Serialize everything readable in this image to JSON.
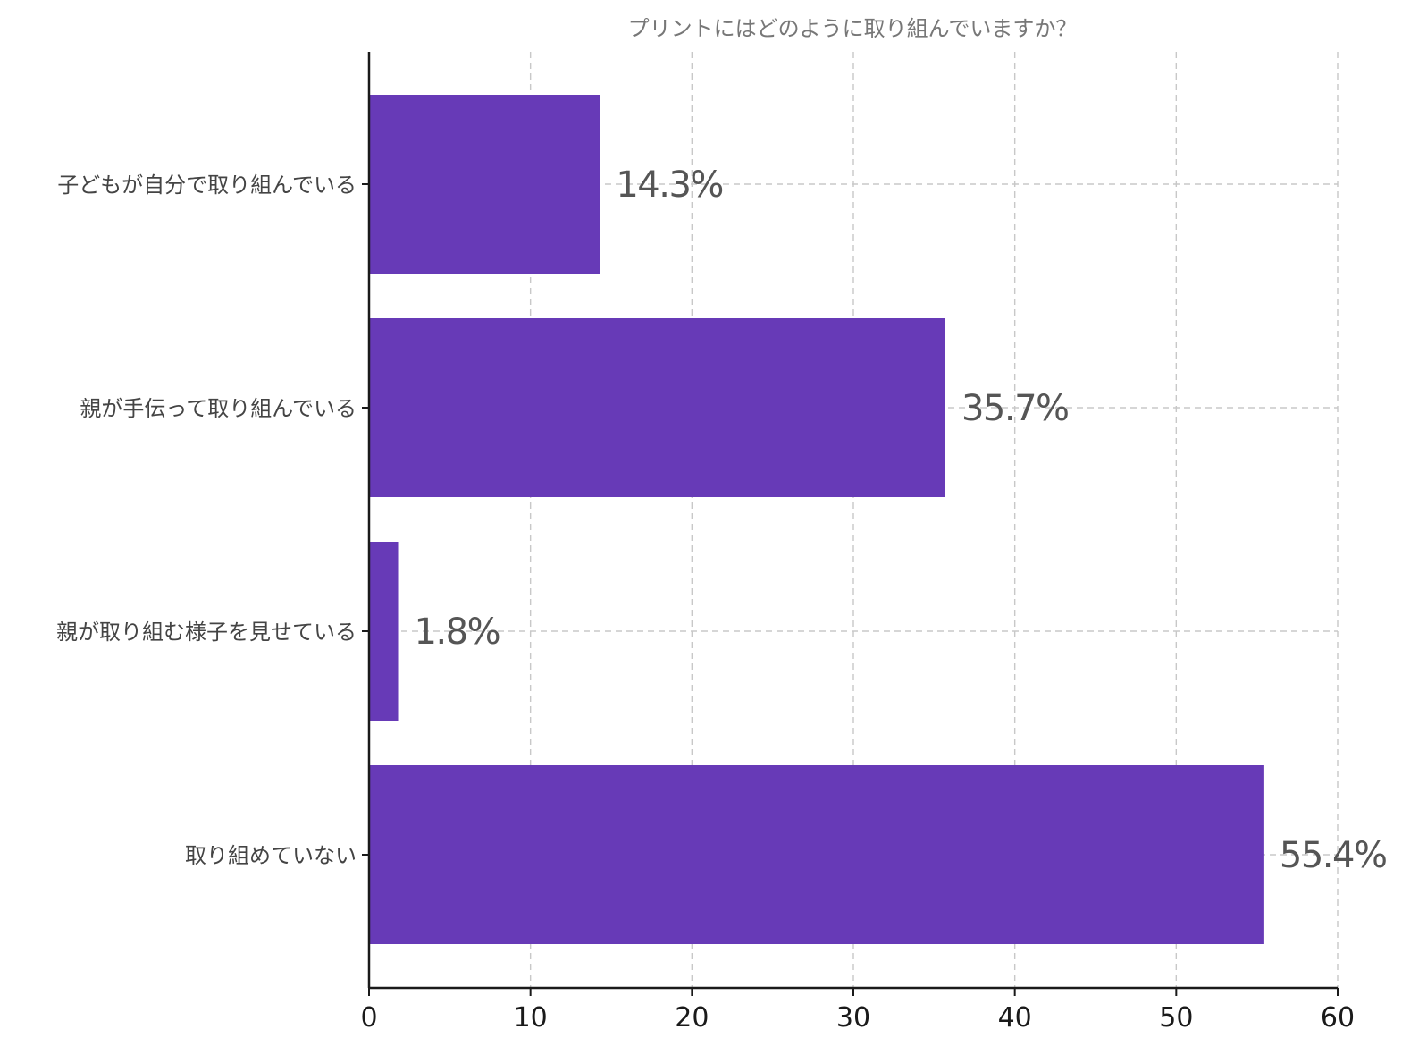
{
  "chart_data": {
    "type": "bar",
    "orientation": "horizontal",
    "title": "プリントにはどのように取り組んでいますか？",
    "xlabel": "",
    "ylabel": "",
    "categories": [
      "子どもが自分で取り組んでいる",
      "親が手伝って取り組んでいる",
      "親が取り組む様子を見せている",
      "取り組めていない"
    ],
    "values": [
      14.3,
      35.7,
      1.8,
      55.4
    ],
    "data_labels": [
      "14.3%",
      "35.7%",
      "1.8%",
      "55.4%"
    ],
    "xlim": [
      0,
      60
    ],
    "xticks": [
      0,
      10,
      20,
      30,
      40,
      50,
      60
    ],
    "grid": true,
    "legend": "none",
    "bar_color": "#673ab7"
  }
}
